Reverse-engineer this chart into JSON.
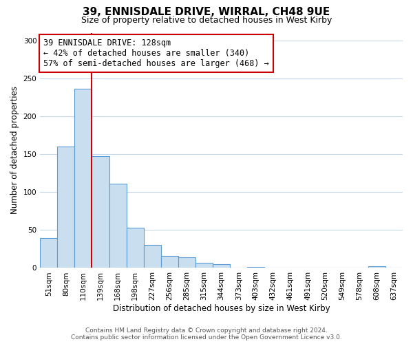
{
  "title": "39, ENNISDALE DRIVE, WIRRAL, CH48 9UE",
  "subtitle": "Size of property relative to detached houses in West Kirby",
  "xlabel": "Distribution of detached houses by size in West Kirby",
  "ylabel": "Number of detached properties",
  "footer_lines": [
    "Contains HM Land Registry data © Crown copyright and database right 2024.",
    "Contains public sector information licensed under the Open Government Licence v3.0."
  ],
  "bin_labels": [
    "51sqm",
    "80sqm",
    "110sqm",
    "139sqm",
    "168sqm",
    "198sqm",
    "227sqm",
    "256sqm",
    "285sqm",
    "315sqm",
    "344sqm",
    "373sqm",
    "403sqm",
    "432sqm",
    "461sqm",
    "491sqm",
    "520sqm",
    "549sqm",
    "578sqm",
    "608sqm",
    "637sqm"
  ],
  "bar_values": [
    39,
    160,
    236,
    147,
    111,
    53,
    30,
    16,
    14,
    7,
    5,
    0,
    1,
    0,
    0,
    0,
    0,
    0,
    0,
    2,
    0
  ],
  "bar_color": "#c9dff0",
  "bar_edge_color": "#5b9bd5",
  "vline_x_index": 2.5,
  "vline_color": "#cc0000",
  "annotation_line1": "39 ENNISDALE DRIVE: 128sqm",
  "annotation_line2": "← 42% of detached houses are smaller (340)",
  "annotation_line3": "57% of semi-detached houses are larger (468) →",
  "annotation_box_edge_color": "#cc0000",
  "ylim": [
    0,
    310
  ],
  "background_color": "#ffffff",
  "grid_color": "#c8d8e8",
  "title_fontsize": 11,
  "subtitle_fontsize": 9,
  "axis_label_fontsize": 8.5,
  "tick_fontsize": 7.5,
  "annotation_fontsize": 8.5,
  "footer_fontsize": 6.5
}
